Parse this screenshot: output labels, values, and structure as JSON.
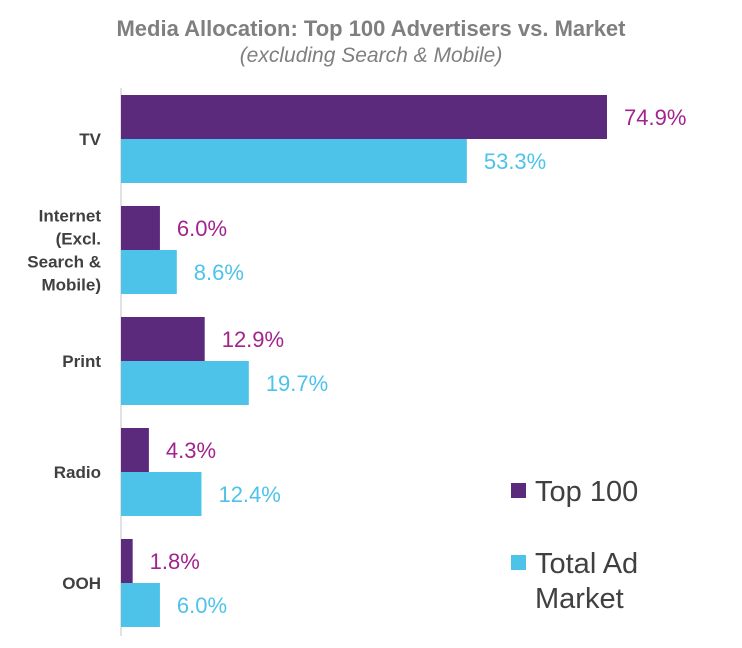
{
  "chart_data": {
    "type": "bar",
    "orientation": "horizontal",
    "title": "Media Allocation: Top 100 Advertisers vs. Market",
    "subtitle": "(excluding Search & Mobile)",
    "categories": [
      "TV",
      "Internet (Excl. Search & Mobile)",
      "Print",
      "Radio",
      "OOH"
    ],
    "category_lines": [
      [
        "TV"
      ],
      [
        "Internet",
        "(Excl.",
        "Search &",
        "Mobile)"
      ],
      [
        "Print"
      ],
      [
        "Radio"
      ],
      [
        "OOH"
      ]
    ],
    "series": [
      {
        "name": "Top 100",
        "values": [
          74.9,
          6.0,
          12.9,
          4.3,
          1.8
        ],
        "labels": [
          "74.9%",
          "6.0%",
          "12.9%",
          "4.3%",
          "1.8%"
        ],
        "color": "#5b2a7d",
        "label_color": "#a3238e"
      },
      {
        "name": "Total Ad Market",
        "values": [
          53.3,
          8.6,
          19.7,
          12.4,
          6.0
        ],
        "labels": [
          "53.3%",
          "8.6%",
          "19.7%",
          "12.4%",
          "6.0%"
        ],
        "color": "#4dc3ea",
        "label_color": "#4dc3ea"
      }
    ],
    "legend_lines": [
      [
        "Top 100"
      ],
      [
        "Total Ad",
        "Market"
      ]
    ],
    "legend_position": "bottom-right",
    "xlim": [
      0,
      80
    ],
    "grid": false,
    "axis_line_color": "#d9d9d9"
  }
}
